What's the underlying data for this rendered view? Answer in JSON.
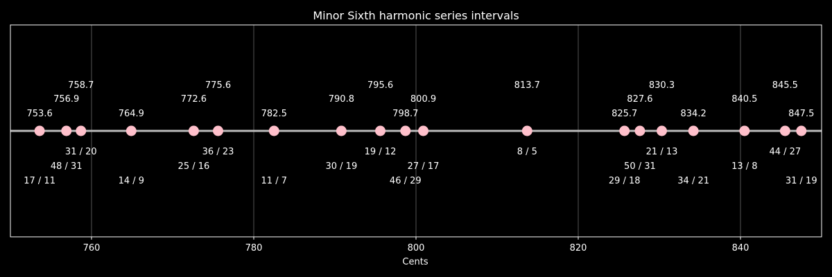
{
  "chart_data": {
    "type": "scatter",
    "title": "Minor Sixth harmonic series intervals",
    "xlabel": "Cents",
    "ylabel": "",
    "xlim": [
      750,
      850
    ],
    "ylim": [
      -1,
      1
    ],
    "xticks": [
      760,
      780,
      800,
      820,
      840
    ],
    "grid": "x-only",
    "point_color": "#ffc0cb",
    "line_color": "#bbbbbb",
    "points": [
      {
        "cents": 753.6,
        "ratio": "17 / 11",
        "level": 0
      },
      {
        "cents": 756.9,
        "ratio": "48 / 31",
        "level": 1
      },
      {
        "cents": 758.7,
        "ratio": "31 / 20",
        "level": 2
      },
      {
        "cents": 764.9,
        "ratio": "14 / 9",
        "level": 0
      },
      {
        "cents": 772.6,
        "ratio": "25 / 16",
        "level": 1
      },
      {
        "cents": 775.6,
        "ratio": "36 / 23",
        "level": 2
      },
      {
        "cents": 782.5,
        "ratio": "11 / 7",
        "level": 0
      },
      {
        "cents": 790.8,
        "ratio": "30 / 19",
        "level": 1
      },
      {
        "cents": 795.6,
        "ratio": "19 / 12",
        "level": 2
      },
      {
        "cents": 798.7,
        "ratio": "46 / 29",
        "level": 0
      },
      {
        "cents": 800.9,
        "ratio": "27 / 17",
        "level": 1
      },
      {
        "cents": 813.7,
        "ratio": "8 / 5",
        "level": 2
      },
      {
        "cents": 825.7,
        "ratio": "29 / 18",
        "level": 0
      },
      {
        "cents": 827.6,
        "ratio": "50 / 31",
        "level": 1
      },
      {
        "cents": 830.3,
        "ratio": "21 / 13",
        "level": 2
      },
      {
        "cents": 834.2,
        "ratio": "34 / 21",
        "level": 0
      },
      {
        "cents": 840.5,
        "ratio": "13 / 8",
        "level": 1
      },
      {
        "cents": 845.5,
        "ratio": "44 / 27",
        "level": 2
      },
      {
        "cents": 847.5,
        "ratio": "31 / 19",
        "level": 0
      }
    ]
  }
}
